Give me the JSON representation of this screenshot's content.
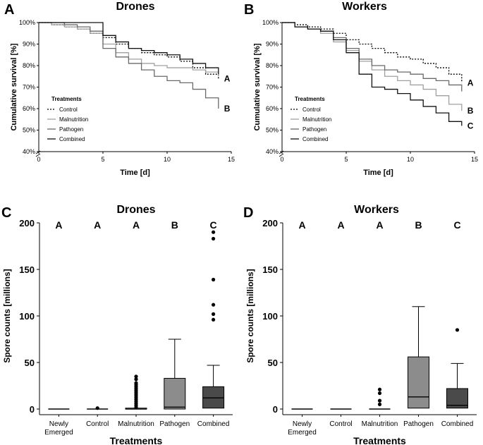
{
  "chart_data": [
    {
      "panel": "A",
      "type": "line",
      "title": "Drones",
      "xlabel": "Time [d]",
      "ylabel": "Cumulative survival [%]",
      "xlim": [
        0,
        15
      ],
      "ylim": [
        40,
        100
      ],
      "x_ticks": [
        "0",
        "5",
        "10",
        "15"
      ],
      "y_ticks": [
        "40%",
        "50%",
        "60%",
        "70%",
        "80%",
        "90%",
        "100%"
      ],
      "legend_title": "Treatments",
      "legend_position": "bottom-left",
      "series": [
        {
          "name": "Control",
          "style": "dotted",
          "color": "#000000",
          "x": [
            0,
            1,
            2,
            3,
            4,
            5,
            6,
            7,
            8,
            9,
            10,
            11,
            12,
            13,
            14
          ],
          "y": [
            100,
            99,
            98,
            97,
            95,
            93,
            90,
            88,
            86,
            85,
            84,
            82,
            79,
            76,
            74
          ],
          "label": "A"
        },
        {
          "name": "Malnutrition",
          "style": "solid",
          "color": "#a0a0a0",
          "x": [
            0,
            1,
            2,
            3,
            4,
            5,
            6,
            7,
            8,
            9,
            10,
            11,
            12,
            13,
            14
          ],
          "y": [
            100,
            99,
            98,
            97,
            95,
            90,
            86,
            83,
            81,
            80,
            79,
            79,
            78,
            77,
            75
          ],
          "label": ""
        },
        {
          "name": "Pathogen",
          "style": "solid",
          "color": "#6a6a6a",
          "x": [
            0,
            1,
            2,
            3,
            4,
            5,
            6,
            7,
            8,
            9,
            10,
            11,
            12,
            13,
            14
          ],
          "y": [
            100,
            100,
            99,
            98,
            96,
            88,
            84,
            81,
            78,
            75,
            73,
            72,
            69,
            65,
            60
          ],
          "label": "B"
        },
        {
          "name": "Combined",
          "style": "solid",
          "color": "#111111",
          "x": [
            0,
            1,
            2,
            3,
            4,
            5,
            6,
            7,
            8,
            9,
            10,
            11,
            12,
            13,
            14
          ],
          "y": [
            100,
            100,
            100,
            100,
            100,
            94,
            91,
            88,
            87,
            86,
            85,
            83,
            81,
            79,
            76
          ],
          "label": ""
        }
      ],
      "group_labels": [
        "A",
        "B"
      ]
    },
    {
      "panel": "B",
      "type": "line",
      "title": "Workers",
      "xlabel": "Time [d]",
      "ylabel": "Cumulative survival [%]",
      "xlim": [
        0,
        15
      ],
      "ylim": [
        40,
        100
      ],
      "x_ticks": [
        "0",
        "5",
        "10",
        "15"
      ],
      "y_ticks": [
        "40%",
        "50%",
        "60%",
        "70%",
        "80%",
        "90%",
        "100%"
      ],
      "legend_title": "Treatments",
      "legend_position": "bottom-left",
      "series": [
        {
          "name": "Control",
          "style": "dotted",
          "color": "#000000",
          "x": [
            0,
            1,
            2,
            3,
            4,
            5,
            6,
            7,
            8,
            9,
            10,
            11,
            12,
            13,
            14
          ],
          "y": [
            100,
            99,
            98,
            97,
            95,
            92,
            90,
            88,
            86,
            84,
            83,
            81,
            79,
            76,
            72
          ],
          "label": "A"
        },
        {
          "name": "Malnutrition",
          "style": "solid",
          "color": "#a0a0a0",
          "x": [
            0,
            1,
            2,
            3,
            4,
            5,
            6,
            7,
            8,
            9,
            10,
            11,
            12,
            13,
            14
          ],
          "y": [
            100,
            98,
            97,
            95,
            91,
            87,
            82,
            78,
            75,
            73,
            71,
            69,
            66,
            62,
            59
          ],
          "label": "B"
        },
        {
          "name": "Pathogen",
          "style": "solid",
          "color": "#6a6a6a",
          "x": [
            0,
            1,
            2,
            3,
            4,
            5,
            6,
            7,
            8,
            9,
            10,
            11,
            12,
            13,
            14
          ],
          "y": [
            100,
            98,
            97,
            96,
            93,
            88,
            83,
            80,
            78,
            77,
            76,
            74,
            73,
            71,
            68
          ],
          "label": ""
        },
        {
          "name": "Combined",
          "style": "solid",
          "color": "#111111",
          "x": [
            0,
            1,
            2,
            3,
            4,
            5,
            6,
            7,
            8,
            9,
            10,
            11,
            12,
            13,
            14
          ],
          "y": [
            100,
            98,
            97,
            96,
            92,
            86,
            76,
            70,
            69,
            67,
            64,
            61,
            58,
            54,
            52
          ],
          "label": "C"
        }
      ],
      "group_labels": [
        "A",
        "B",
        "C"
      ]
    },
    {
      "panel": "C",
      "type": "box",
      "title": "Drones",
      "xlabel": "Treatments",
      "ylabel": "Spore counts [millions]",
      "ylim": [
        0,
        200
      ],
      "y_ticks": [
        "0",
        "50",
        "100",
        "150",
        "200"
      ],
      "categories": [
        "Newly\nEmerged",
        "Control",
        "Malnutrition",
        "Pathogen",
        "Combined"
      ],
      "significance": [
        "A",
        "A",
        "A",
        "B",
        "C"
      ],
      "boxes": [
        {
          "min": 0,
          "q1": 0,
          "median": 0,
          "q3": 0,
          "max": 0,
          "fill": "#ffffff",
          "outliers": []
        },
        {
          "min": 0,
          "q1": 0,
          "median": 0,
          "q3": 0,
          "max": 0,
          "fill": "#ffffff",
          "outliers": [
            1
          ]
        },
        {
          "min": 0,
          "q1": 0,
          "median": 0,
          "q3": 1,
          "max": 1,
          "fill": "#ffffff",
          "outliers": [
            2,
            4,
            6,
            8,
            10,
            12,
            14,
            16,
            18,
            20,
            22,
            24,
            26,
            28,
            32,
            35
          ]
        },
        {
          "min": 0,
          "q1": 0,
          "median": 2,
          "q3": 33,
          "max": 75,
          "fill": "#8c8c8c",
          "outliers": []
        },
        {
          "min": 0,
          "q1": 1,
          "median": 12,
          "q3": 24,
          "max": 47,
          "fill": "#4a4a4a",
          "outliers": [
            96,
            102,
            112,
            139,
            183,
            190
          ]
        }
      ]
    },
    {
      "panel": "D",
      "type": "box",
      "title": "Workers",
      "xlabel": "Treatments",
      "ylabel": "Spore counts [millions]",
      "ylim": [
        0,
        200
      ],
      "y_ticks": [
        "0",
        "50",
        "100",
        "150",
        "200"
      ],
      "categories": [
        "Newly\nEmerged",
        "Control",
        "Malnutrition",
        "Pathogen",
        "Combined"
      ],
      "significance": [
        "A",
        "A",
        "A",
        "B",
        "C"
      ],
      "boxes": [
        {
          "min": 0,
          "q1": 0,
          "median": 0,
          "q3": 0,
          "max": 0,
          "fill": "#ffffff",
          "outliers": []
        },
        {
          "min": 0,
          "q1": 0,
          "median": 0,
          "q3": 0,
          "max": 0,
          "fill": "#ffffff",
          "outliers": []
        },
        {
          "min": 0,
          "q1": 0,
          "median": 0,
          "q3": 0,
          "max": 0,
          "fill": "#ffffff",
          "outliers": [
            5,
            9,
            17,
            21
          ]
        },
        {
          "min": 0,
          "q1": 1,
          "median": 13,
          "q3": 56,
          "max": 110,
          "fill": "#8c8c8c",
          "outliers": []
        },
        {
          "min": 0,
          "q1": 1,
          "median": 4,
          "q3": 22,
          "max": 49,
          "fill": "#4a4a4a",
          "outliers": [
            85
          ]
        }
      ]
    }
  ]
}
